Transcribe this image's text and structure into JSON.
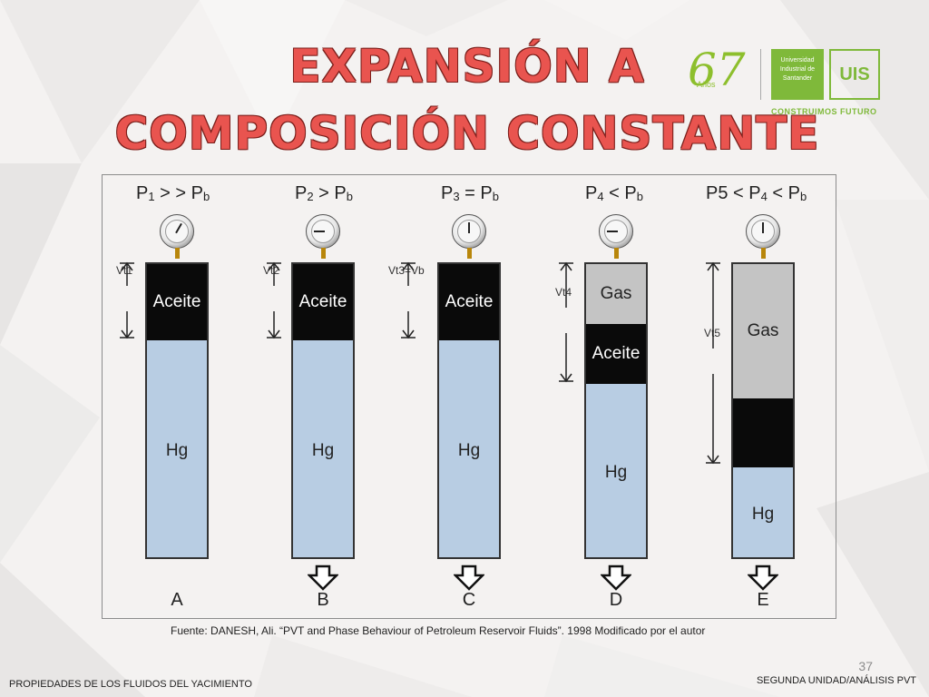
{
  "title": {
    "line1": "EXPANSIÓN A",
    "line2": "COMPOSICIÓN CONSTANTE"
  },
  "logo": {
    "number": "67",
    "anos": "Años",
    "university": "Universidad Industrial de Santander",
    "acronym": "UIS",
    "motto": "CONSTRUIMOS FUTURO"
  },
  "cylinders": [
    {
      "pressure": [
        "P",
        "1",
        " > > P",
        "b"
      ],
      "vt": "Vt1",
      "letter": "A",
      "segments": [
        [
          "oil",
          "Aceite"
        ],
        [
          "hg",
          "Hg"
        ]
      ]
    },
    {
      "pressure": [
        "P",
        "2",
        " > P",
        "b"
      ],
      "vt": "Vt2",
      "letter": "B",
      "segments": [
        [
          "oil",
          "Aceite"
        ],
        [
          "hg",
          "Hg"
        ]
      ]
    },
    {
      "pressure": [
        "P",
        "3",
        " = P",
        "b"
      ],
      "vt": "Vt3=Vb",
      "letter": "C",
      "segments": [
        [
          "oil",
          "Aceite"
        ],
        [
          "hg",
          "Hg"
        ]
      ]
    },
    {
      "pressure": [
        "P",
        "4",
        " < P",
        "b"
      ],
      "vt": "Vt4",
      "letter": "D",
      "segments": [
        [
          "gas",
          "Gas"
        ],
        [
          "oil",
          "Aceite"
        ],
        [
          "hg",
          "Hg"
        ]
      ]
    },
    {
      "pressure": [
        "P5 < P",
        "4",
        " < P",
        "b"
      ],
      "vt": "Vt5",
      "letter": "E",
      "segments": [
        [
          "gas",
          "Gas"
        ],
        [
          "oil",
          ""
        ],
        [
          "hg",
          "Hg"
        ]
      ]
    }
  ],
  "source": "Fuente: DANESH, Ali. “PVT and Phase Behaviour of Petroleum Reservoir Fluids”. 1998 Modificado por el  autor",
  "page_number": "37",
  "footer_left": "PROPIEDADES DE LOS FLUIDOS DEL YACIMIENTO",
  "footer_right": "SEGUNDA UNIDAD/ANÁLISIS PVT"
}
